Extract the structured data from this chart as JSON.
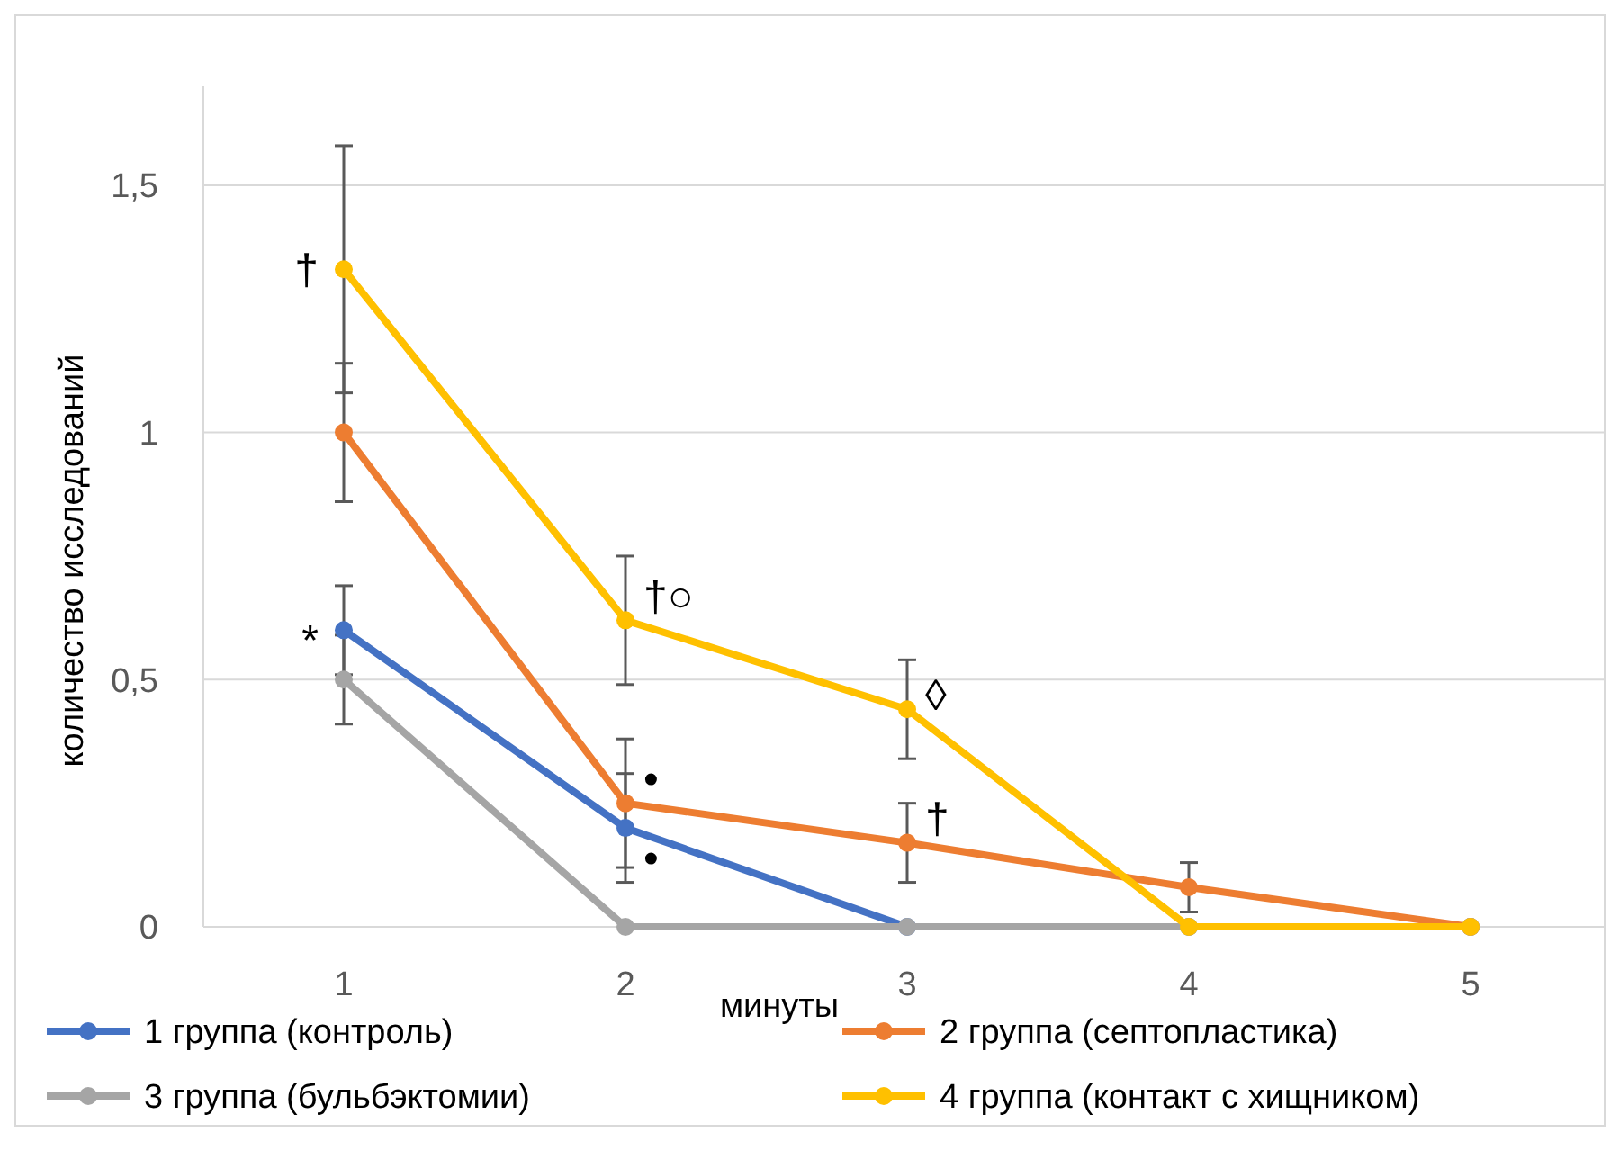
{
  "chart_data": {
    "type": "line",
    "xlabel": "минуты",
    "ylabel": "количество исследований",
    "categories": [
      "1",
      "2",
      "3",
      "4",
      "5"
    ],
    "ylim": [
      0,
      1.7
    ],
    "yticks": [
      0,
      {
        "value": 0.5,
        "label": "0,5"
      },
      1,
      {
        "value": 1.5,
        "label": "1,5"
      }
    ],
    "grid": "y",
    "legend": "bottom",
    "marker": "circle",
    "line_style": "solid",
    "series": [
      {
        "name": "1 группа (контроль)",
        "color": "#4472c4",
        "values": [
          0.6,
          0.2,
          0,
          0,
          0
        ],
        "errors": [
          0.09,
          0.11,
          null,
          null,
          null
        ]
      },
      {
        "name": "2 группа (септопластика)",
        "color": "#ed7d31",
        "values": [
          1,
          0.25,
          0.17,
          0.08,
          0
        ],
        "errors": [
          0.14,
          0.13,
          0.08,
          0.05,
          null
        ]
      },
      {
        "name": "3 группа (бульбэктомии)",
        "color": "#a5a5a5",
        "values": [
          0.5,
          0,
          0,
          0,
          0
        ],
        "errors": [
          0.09,
          null,
          null,
          null,
          null
        ]
      },
      {
        "name": "4 группа (контакт с хищником)",
        "color": "#ffc000",
        "values": [
          1.33,
          0.62,
          0.44,
          0,
          0
        ],
        "errors": [
          0.25,
          0.13,
          0.1,
          null,
          null
        ]
      }
    ],
    "annotations": [
      {
        "text": "†",
        "x": "1",
        "y": 1.33
      },
      {
        "text": "*",
        "x": "1",
        "y": 0.58
      },
      {
        "text": "†○",
        "x": "2",
        "y": 0.67
      },
      {
        "text": "•",
        "x": "2",
        "y": 0.3
      },
      {
        "text": "•",
        "x": "2",
        "y": 0.14
      },
      {
        "text": "◊",
        "x": "3",
        "y": 0.47
      },
      {
        "text": "†",
        "x": "3",
        "y": 0.22
      }
    ]
  }
}
